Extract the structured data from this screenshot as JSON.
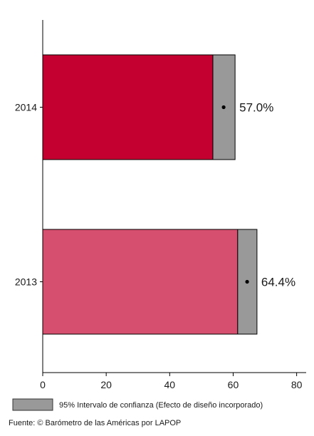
{
  "chart_data": {
    "type": "bar",
    "orientation": "horizontal",
    "categories": [
      "2014",
      "2013"
    ],
    "values": [
      57.0,
      64.4
    ],
    "ci_lower": [
      53.6,
      61.4
    ],
    "ci_upper": [
      60.6,
      67.5
    ],
    "data_labels": [
      "57.0%",
      "64.4%"
    ],
    "bar_colors": [
      "#c3002f",
      "#d64f6e"
    ],
    "ci_color": "#999999",
    "xlim": [
      0,
      83
    ],
    "xticks": [
      0,
      20,
      40,
      60,
      80
    ],
    "grid": false,
    "legend": {
      "label": "95% Intervalo de confianza (Efecto de diseño incorporado)",
      "position": "bottom-left"
    },
    "source": "Fuente: © Barómetro de las Américas por LAPOP"
  }
}
